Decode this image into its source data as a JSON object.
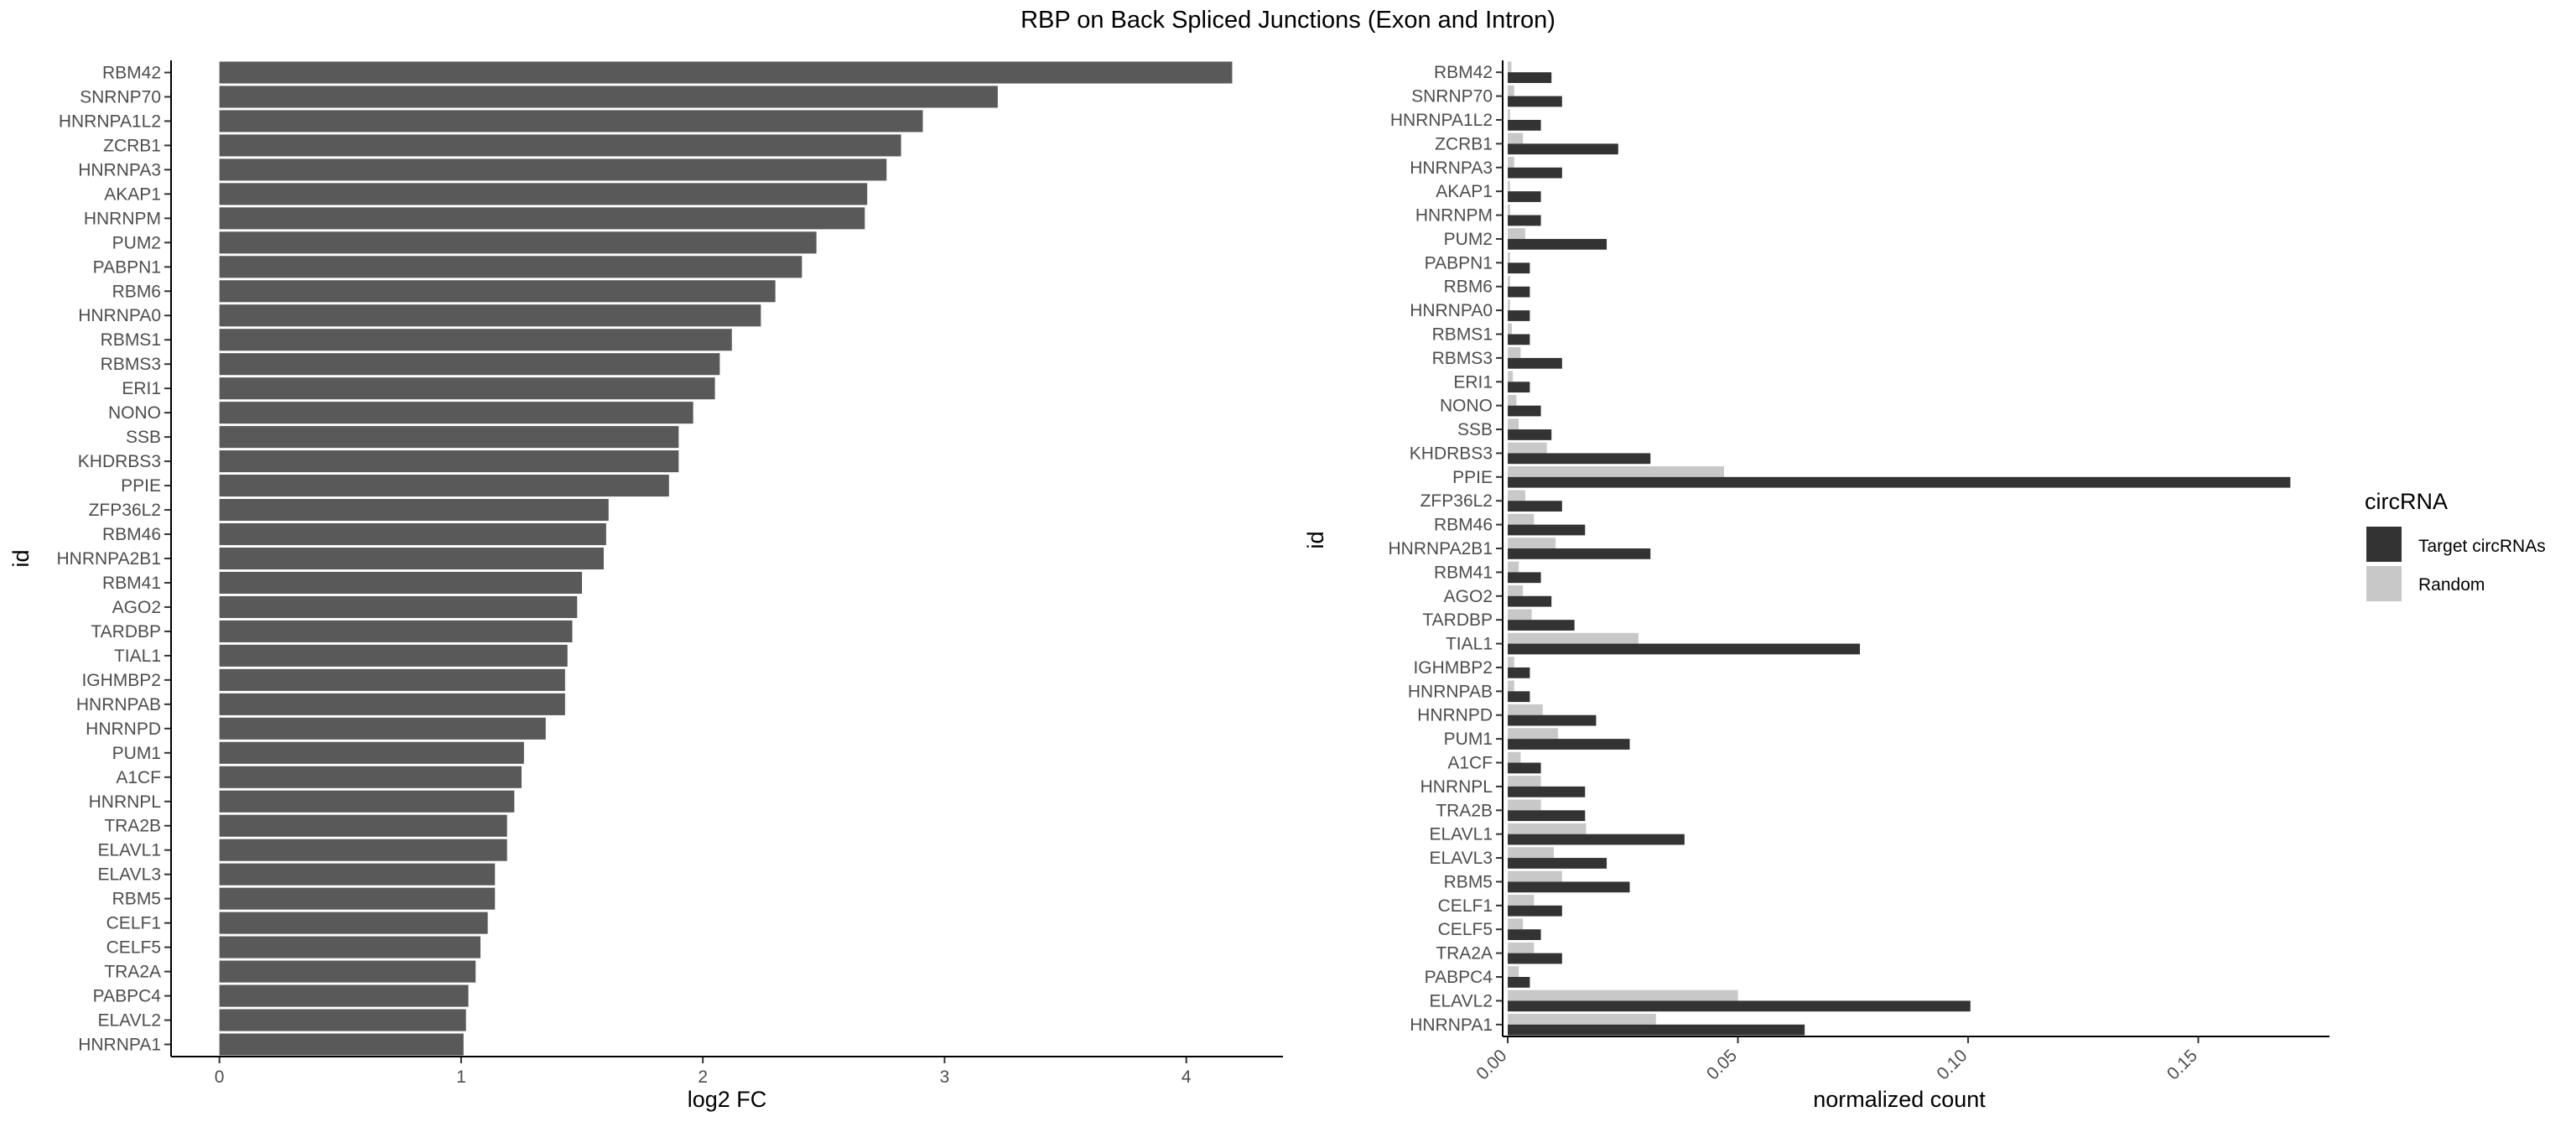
{
  "title": "RBP on Back Spliced Junctions (Exon and Intron)",
  "colors": {
    "bar_left": "#595959",
    "target": "#333333",
    "random": "#c8c8c8",
    "axis": "#000000"
  },
  "chart_data": [
    {
      "type": "bar",
      "orientation": "horizontal",
      "xlabel": "log2 FC",
      "ylabel": "id",
      "xlim": [
        -0.2,
        4.4
      ],
      "xticks": [
        "0",
        "1",
        "2",
        "3",
        "4"
      ],
      "grid": false,
      "categories": [
        "RBM42",
        "SNRNP70",
        "HNRNPA1L2",
        "ZCRB1",
        "HNRNPA3",
        "AKAP1",
        "HNRNPM",
        "PUM2",
        "PABPN1",
        "RBM6",
        "HNRNPA0",
        "RBMS1",
        "RBMS3",
        "ERI1",
        "NONO",
        "SSB",
        "KHDRBS3",
        "PPIE",
        "ZFP36L2",
        "RBM46",
        "HNRNPA2B1",
        "RBM41",
        "AGO2",
        "TARDBP",
        "TIAL1",
        "IGHMBP2",
        "HNRNPAB",
        "HNRNPD",
        "PUM1",
        "A1CF",
        "HNRNPL",
        "TRA2B",
        "ELAVL1",
        "ELAVL3",
        "RBM5",
        "CELF1",
        "CELF5",
        "TRA2A",
        "PABPC4",
        "ELAVL2",
        "HNRNPA1"
      ],
      "values": [
        4.19,
        3.22,
        2.91,
        2.82,
        2.76,
        2.68,
        2.67,
        2.47,
        2.41,
        2.3,
        2.24,
        2.12,
        2.07,
        2.05,
        1.96,
        1.9,
        1.9,
        1.86,
        1.61,
        1.6,
        1.59,
        1.5,
        1.48,
        1.46,
        1.44,
        1.43,
        1.43,
        1.35,
        1.26,
        1.25,
        1.22,
        1.19,
        1.19,
        1.14,
        1.14,
        1.11,
        1.08,
        1.06,
        1.03,
        1.02,
        1.01
      ]
    },
    {
      "type": "bar",
      "orientation": "horizontal",
      "grouped": true,
      "xlabel": "normalized count",
      "ylabel": "id",
      "xlim": [
        -0.0011,
        0.1785
      ],
      "xticks": [
        "0.00",
        "0.05",
        "0.10",
        "0.15"
      ],
      "grid": false,
      "legend_title": "circRNA",
      "legend_position": "right",
      "categories": [
        "RBM42",
        "SNRNP70",
        "HNRNPA1L2",
        "ZCRB1",
        "HNRNPA3",
        "AKAP1",
        "HNRNPM",
        "PUM2",
        "PABPN1",
        "RBM6",
        "HNRNPA0",
        "RBMS1",
        "RBMS3",
        "ERI1",
        "NONO",
        "SSB",
        "KHDRBS3",
        "PPIE",
        "ZFP36L2",
        "RBM46",
        "HNRNPA2B1",
        "RBM41",
        "AGO2",
        "TARDBP",
        "TIAL1",
        "IGHMBP2",
        "HNRNPAB",
        "HNRNPD",
        "PUM1",
        "A1CF",
        "HNRNPL",
        "TRA2B",
        "ELAVL1",
        "ELAVL3",
        "RBM5",
        "CELF1",
        "CELF5",
        "TRA2A",
        "PABPC4",
        "ELAVL2",
        "HNRNPA1"
      ],
      "series": [
        {
          "name": "Target circRNAs",
          "values": [
            0.0095,
            0.0118,
            0.0072,
            0.024,
            0.0118,
            0.0072,
            0.0072,
            0.0215,
            0.0048,
            0.0048,
            0.0048,
            0.0048,
            0.0118,
            0.0048,
            0.0072,
            0.0095,
            0.031,
            0.17,
            0.0118,
            0.0168,
            0.031,
            0.0072,
            0.0095,
            0.0145,
            0.0765,
            0.0048,
            0.0048,
            0.0192,
            0.0265,
            0.0072,
            0.0168,
            0.0168,
            0.0384,
            0.0215,
            0.0265,
            0.0118,
            0.0072,
            0.0118,
            0.0048,
            0.1005,
            0.0645
          ]
        },
        {
          "name": "Random",
          "values": [
            0.0008,
            0.0014,
            0.0005,
            0.0033,
            0.0014,
            0.0005,
            0.0005,
            0.0038,
            0.0005,
            0.0005,
            0.0005,
            0.0009,
            0.0028,
            0.0011,
            0.0019,
            0.0024,
            0.0085,
            0.047,
            0.0038,
            0.0057,
            0.0104,
            0.0024,
            0.0033,
            0.0052,
            0.0284,
            0.0014,
            0.0014,
            0.0076,
            0.0109,
            0.0028,
            0.0072,
            0.0072,
            0.017,
            0.01,
            0.0118,
            0.0057,
            0.0033,
            0.0057,
            0.0024,
            0.05,
            0.0322
          ]
        }
      ]
    }
  ]
}
